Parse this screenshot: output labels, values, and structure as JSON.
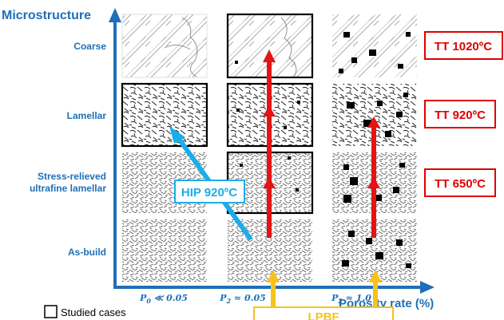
{
  "axes": {
    "y_title": "Microstructure",
    "x_title": "Porosity rate (%)",
    "x_ticks": [
      {
        "base": "P",
        "sub": "0",
        "rest": " ≪ 0.05"
      },
      {
        "base": "P",
        "sub": "2",
        "rest": " ≈ 0.05"
      },
      {
        "base": "P",
        "sub": "2",
        "rest": " ≈ 1.0"
      }
    ]
  },
  "rows": [
    "Coarse",
    "Lamellar",
    "Stress-relieved",
    "ultrafine lamellar",
    "As-build"
  ],
  "treatments": [
    "TT 1020ºC",
    "TT 920ºC",
    "TT 650ºC"
  ],
  "hip_label": "HIP 920ºC",
  "lpbf_label": "LPBF",
  "legend_label": "Studied cases",
  "colors": {
    "axis_blue": "#1f6fb8",
    "red": "#e31414",
    "cyan": "#1aaee8",
    "yellow": "#f7c21b",
    "tt_red": "#e00000"
  }
}
